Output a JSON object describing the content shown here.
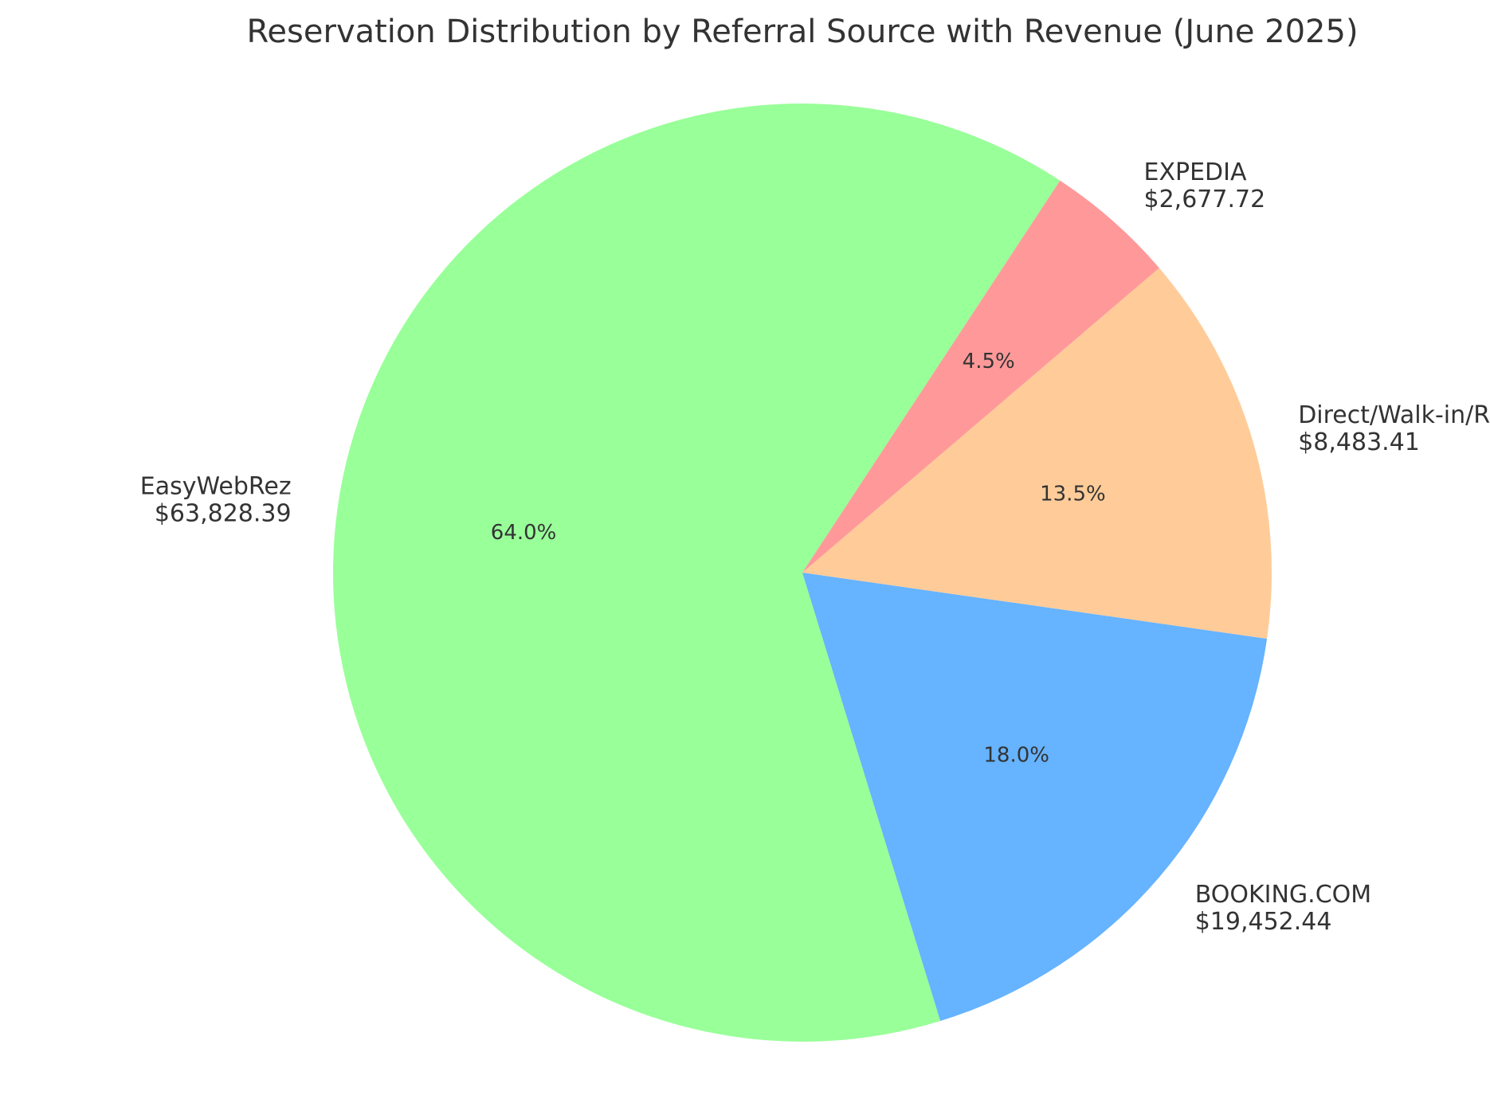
{
  "chart_data": {
    "type": "pie",
    "title": "Reservation Distribution by Referral Source with Revenue (June 2025)",
    "slices": [
      {
        "label": "EasyWebRez",
        "revenue": "$63,828.39",
        "percent_label": "64.0%",
        "value": 63828.39,
        "color": "#99ff99"
      },
      {
        "label": "BOOKING.COM",
        "revenue": "$19,452.44",
        "percent_label": "18.0%",
        "value": 19452.44,
        "color": "#66b3ff"
      },
      {
        "label": "Direct/Walk-in/Repeat",
        "revenue": "$8,483.41",
        "percent_label": "13.5%",
        "value": 8483.41,
        "color": "#ffcc99"
      },
      {
        "label": "EXPEDIA",
        "revenue": "$2,677.72",
        "percent_label": "4.5%",
        "value": 2677.72,
        "color": "#ff9999"
      }
    ],
    "percentages": [
      64.0,
      18.0,
      13.5,
      4.5
    ],
    "start_angle_deg": 56.7,
    "direction": "counterclockwise",
    "legend": "none"
  }
}
